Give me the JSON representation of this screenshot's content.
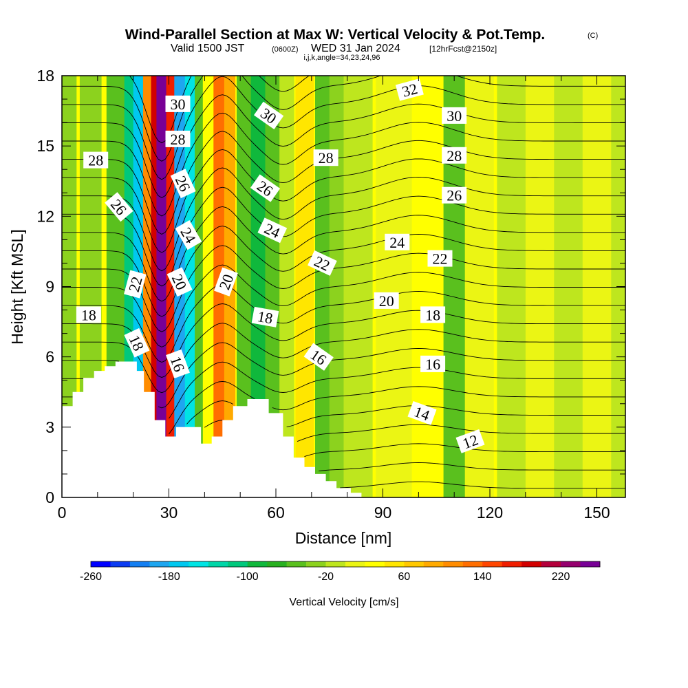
{
  "header": {
    "title_main": "Wind-Parallel Section at Max W: Vertical Velocity & Pot.Temp.",
    "title_mark": "(C)",
    "valid_prefix": "Valid 1500 JST",
    "valid_utc": "(0600Z)",
    "valid_date": "WED 31 Jan 2024",
    "fcst": "[12hrFcst@2150z]",
    "indices": "i,j,k,angle=34,23,24,96"
  },
  "colors": {
    "terrain": "#ffffff",
    "contour": "#000000",
    "colorbar": [
      "#0000ff",
      "#0c3cf2",
      "#147ff2",
      "#1ea6f0",
      "#00c8f0",
      "#00e4e4",
      "#00d6a8",
      "#00c87c",
      "#10b83c",
      "#28b020",
      "#5ac01e",
      "#8cd21e",
      "#bee61e",
      "#ebf514",
      "#ffff00",
      "#ffe600",
      "#ffc800",
      "#ffaa00",
      "#ff8c00",
      "#ff6e00",
      "#ff4600",
      "#f01e00",
      "#d20000",
      "#b4003c",
      "#96006e",
      "#780096"
    ]
  },
  "chart_data": {
    "type": "heatmap",
    "title": "Wind-Parallel Section at Max W: Vertical Velocity & Pot.Temp.",
    "xlabel": "Distance [nm]",
    "ylabel": "Height [Kft MSL]",
    "xlim": [
      0,
      158
    ],
    "ylim": [
      0,
      18
    ],
    "x_ticks": [
      0,
      30,
      60,
      90,
      120,
      150
    ],
    "y_ticks": [
      0,
      3,
      6,
      9,
      12,
      15,
      18
    ],
    "x_tick_labels": [
      "0",
      "30",
      "60",
      "90",
      "120",
      "150"
    ],
    "y_tick_labels": [
      "0",
      "3",
      "6",
      "9",
      "12",
      "15",
      "18"
    ],
    "grid": false,
    "colorbar": {
      "title": "Vertical Velocity [cm/s]",
      "min": -260,
      "max": 260,
      "step": 20,
      "tick_values": [
        -260,
        -180,
        -100,
        -20,
        60,
        140,
        220
      ],
      "tick_labels": [
        "-260",
        "-180",
        "-100",
        "-20",
        "60",
        "140",
        "220"
      ]
    },
    "terrain_profile": {
      "x": [
        0,
        3,
        3,
        6,
        6,
        9,
        9,
        12,
        12,
        15,
        15,
        21,
        21,
        23,
        23,
        26,
        26,
        29,
        29,
        32,
        32,
        39,
        39,
        42,
        42,
        45,
        45,
        48,
        48,
        52,
        52,
        55,
        55,
        58,
        58,
        62,
        62,
        65,
        65,
        68,
        68,
        71,
        71,
        74,
        74,
        77,
        77,
        81,
        81,
        84,
        84,
        158
      ],
      "height": [
        3.9,
        3.9,
        4.5,
        4.5,
        5.1,
        5.1,
        5.4,
        5.4,
        5.6,
        5.6,
        5.8,
        5.8,
        5.4,
        5.4,
        4.5,
        4.5,
        3.3,
        3.3,
        2.6,
        2.6,
        3.0,
        3.0,
        2.3,
        2.3,
        2.6,
        2.6,
        3.3,
        3.3,
        3.9,
        3.9,
        4.2,
        4.2,
        4.2,
        4.2,
        3.6,
        3.6,
        2.6,
        2.6,
        1.7,
        1.7,
        1.3,
        1.3,
        1.0,
        1.0,
        0.7,
        0.7,
        0.4,
        0.4,
        0.2,
        0.2,
        0.0,
        0.0
      ]
    },
    "vertical_velocity_bands": [
      {
        "x_center": 1,
        "width": 6,
        "value": -30
      },
      {
        "x_center": 8,
        "width": 6,
        "value": -40
      },
      {
        "x_center": 15,
        "width": 5,
        "value": -50
      },
      {
        "x_center": 19,
        "width": 3,
        "value": -120
      },
      {
        "x_center": 21.5,
        "width": 3,
        "value": -180
      },
      {
        "x_center": 24,
        "width": 2.5,
        "value": 100
      },
      {
        "x_center": 26,
        "width": 2,
        "value": 180
      },
      {
        "x_center": 28,
        "width": 3,
        "value": 260
      },
      {
        "x_center": 30.5,
        "width": 2.5,
        "value": 160
      },
      {
        "x_center": 33,
        "width": 3,
        "value": -200
      },
      {
        "x_center": 36,
        "width": 3,
        "value": -160
      },
      {
        "x_center": 38.5,
        "width": 2.5,
        "value": -60
      },
      {
        "x_center": 41,
        "width": 3,
        "value": 20
      },
      {
        "x_center": 44,
        "width": 3,
        "value": 120
      },
      {
        "x_center": 47,
        "width": 3,
        "value": 90
      },
      {
        "x_center": 51,
        "width": 4,
        "value": -50
      },
      {
        "x_center": 55,
        "width": 4,
        "value": -100
      },
      {
        "x_center": 59,
        "width": 4,
        "value": -60
      },
      {
        "x_center": 63,
        "width": 4,
        "value": -20
      },
      {
        "x_center": 68,
        "width": 5,
        "value": 40
      },
      {
        "x_center": 73,
        "width": 4,
        "value": -60
      },
      {
        "x_center": 77,
        "width": 4,
        "value": -40
      },
      {
        "x_center": 83,
        "width": 8,
        "value": -10
      },
      {
        "x_center": 93,
        "width": 10,
        "value": 10
      },
      {
        "x_center": 103,
        "width": 6,
        "value": 30
      },
      {
        "x_center": 110,
        "width": 6,
        "value": -50
      },
      {
        "x_center": 117,
        "width": 8,
        "value": 10
      },
      {
        "x_center": 126,
        "width": 8,
        "value": -20
      },
      {
        "x_center": 134,
        "width": 8,
        "value": 0
      },
      {
        "x_center": 142,
        "width": 8,
        "value": -20
      },
      {
        "x_center": 150,
        "width": 8,
        "value": 0
      },
      {
        "x_center": 156,
        "width": 4,
        "value": -10
      }
    ],
    "theta_contours": {
      "unit": "pot. temp. (labels as printed)",
      "levels": [
        10,
        11,
        12,
        13,
        14,
        15,
        16,
        17,
        18,
        19,
        20,
        21,
        22,
        23,
        24,
        25,
        26,
        27,
        28,
        29,
        30,
        31,
        32,
        33
      ],
      "labels": [
        {
          "text": "30",
          "x": 32.5,
          "y": 16.8,
          "angle": 0
        },
        {
          "text": "28",
          "x": 32.5,
          "y": 15.3,
          "angle": 0
        },
        {
          "text": "26",
          "x": 34,
          "y": 13.4,
          "angle": 65
        },
        {
          "text": "24",
          "x": 35.5,
          "y": 11.2,
          "angle": 60
        },
        {
          "text": "20",
          "x": 33,
          "y": 9.2,
          "angle": 65
        },
        {
          "text": "16",
          "x": 32.5,
          "y": 5.7,
          "angle": 70
        },
        {
          "text": "28",
          "x": 9.5,
          "y": 14.4,
          "angle": 0
        },
        {
          "text": "26",
          "x": 16,
          "y": 12.4,
          "angle": 50
        },
        {
          "text": "22",
          "x": 20.5,
          "y": 9.1,
          "angle": -75
        },
        {
          "text": "18",
          "x": 7.5,
          "y": 7.8,
          "angle": 0
        },
        {
          "text": "18",
          "x": 21,
          "y": 6.6,
          "angle": 65
        },
        {
          "text": "20",
          "x": 46,
          "y": 9.2,
          "angle": -70
        },
        {
          "text": "30",
          "x": 58,
          "y": 16.3,
          "angle": 35
        },
        {
          "text": "26",
          "x": 57,
          "y": 13.2,
          "angle": 35
        },
        {
          "text": "24",
          "x": 59,
          "y": 11.4,
          "angle": 25
        },
        {
          "text": "18",
          "x": 57,
          "y": 7.7,
          "angle": 10
        },
        {
          "text": "28",
          "x": 74,
          "y": 14.5,
          "angle": 0
        },
        {
          "text": "22",
          "x": 73,
          "y": 10.0,
          "angle": 25
        },
        {
          "text": "16",
          "x": 72,
          "y": 6.0,
          "angle": 35
        },
        {
          "text": "32",
          "x": 97.5,
          "y": 17.4,
          "angle": -15
        },
        {
          "text": "30",
          "x": 110,
          "y": 16.3,
          "angle": 0
        },
        {
          "text": "28",
          "x": 110,
          "y": 14.6,
          "angle": 0
        },
        {
          "text": "26",
          "x": 110,
          "y": 12.9,
          "angle": 0
        },
        {
          "text": "24",
          "x": 94,
          "y": 10.9,
          "angle": 0
        },
        {
          "text": "22",
          "x": 106,
          "y": 10.2,
          "angle": 0
        },
        {
          "text": "20",
          "x": 91,
          "y": 8.4,
          "angle": 0
        },
        {
          "text": "18",
          "x": 104,
          "y": 7.8,
          "angle": 0
        },
        {
          "text": "16",
          "x": 104,
          "y": 5.7,
          "angle": 0
        },
        {
          "text": "14",
          "x": 101,
          "y": 3.6,
          "angle": 20
        },
        {
          "text": "12",
          "x": 114.5,
          "y": 2.4,
          "angle": -20
        }
      ]
    }
  }
}
